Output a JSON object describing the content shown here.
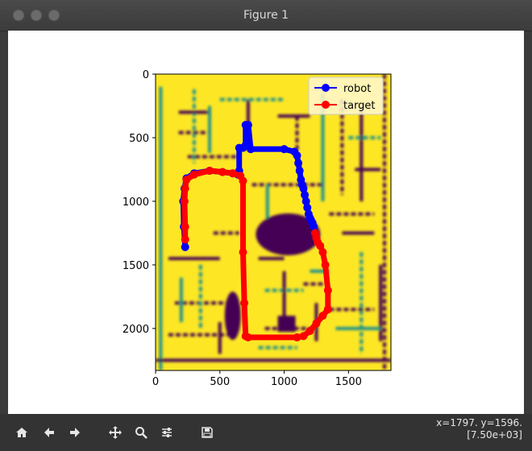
{
  "window": {
    "title": "Figure 1"
  },
  "toolbar": {
    "buttons": [
      {
        "name": "home-icon"
      },
      {
        "name": "back-arrow-icon"
      },
      {
        "name": "forward-arrow-icon"
      },
      {
        "name": "pan-icon"
      },
      {
        "name": "zoom-icon"
      },
      {
        "name": "configure-subplots-icon"
      },
      {
        "name": "save-icon"
      }
    ],
    "status_line1": "x=1797. y=1596.",
    "status_line2": "[7.50e+03]"
  },
  "chart_data": {
    "type": "line",
    "xlim": [
      0,
      1830
    ],
    "ylim": [
      2330,
      0
    ],
    "x_ticks": [
      "0",
      "500",
      "1000",
      "1500"
    ],
    "y_ticks": [
      "0",
      "500",
      "1000",
      "1500",
      "2000"
    ],
    "legend": {
      "placement": "top-right",
      "entries": [
        "robot",
        "target"
      ]
    },
    "colors": {
      "robot": "#0000ff",
      "target": "#ff0000",
      "map_free": "#fde725",
      "map_wall": "#440154",
      "map_mid": "#21918c"
    },
    "series": [
      {
        "name": "robot",
        "x": [
          230,
          220,
          215,
          225,
          240,
          300,
          420,
          520,
          600,
          640,
          650,
          650,
          680,
          700,
          700,
          720,
          740,
          1000,
          1080,
          1100,
          1110,
          1120,
          1130,
          1140,
          1150,
          1160,
          1170,
          1180,
          1190,
          1200,
          1210,
          1220,
          1230,
          1240
        ],
        "y": [
          1360,
          1200,
          1000,
          900,
          820,
          780,
          760,
          770,
          780,
          790,
          760,
          580,
          580,
          560,
          400,
          400,
          590,
          590,
          610,
          640,
          700,
          760,
          830,
          870,
          900,
          950,
          1000,
          1050,
          1100,
          1130,
          1150,
          1170,
          1200,
          1250
        ]
      },
      {
        "name": "target",
        "x": [
          230,
          230,
          225,
          230,
          240,
          300,
          420,
          520,
          600,
          660,
          680,
          680,
          690,
          700,
          720,
          1100,
          1150,
          1200,
          1250,
          1300,
          1340,
          1340,
          1320,
          1300,
          1280,
          1260,
          1250,
          1240
        ],
        "y": [
          1300,
          1200,
          1000,
          900,
          830,
          790,
          760,
          770,
          780,
          800,
          840,
          1400,
          1800,
          2060,
          2070,
          2070,
          2060,
          2020,
          1960,
          1900,
          1850,
          1700,
          1500,
          1400,
          1350,
          1320,
          1290,
          1250
        ]
      }
    ]
  }
}
